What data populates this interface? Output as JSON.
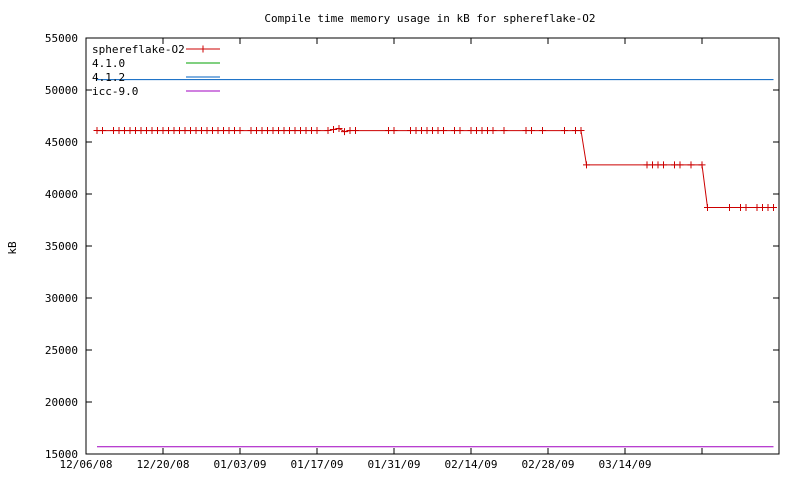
{
  "chart_data": {
    "type": "line",
    "title": "Compile time memory usage in kB for sphereflake-O2",
    "xlabel": "",
    "ylabel": "kB",
    "x_tick_labels": [
      "12/06/08",
      "12/20/08",
      "01/03/09",
      "01/17/09",
      "01/31/09",
      "02/14/09",
      "02/28/09",
      "03/14/09"
    ],
    "x_range": [
      "2008-12-06",
      "2009-04-11"
    ],
    "ylim": [
      15000,
      55000
    ],
    "y_ticks": [
      15000,
      20000,
      25000,
      30000,
      35000,
      40000,
      45000,
      50000,
      55000
    ],
    "grid": false,
    "legend_position": "top-left",
    "series": [
      {
        "name": "sphereflake-O2",
        "color": "#cc0000",
        "marker": "plus",
        "points": [
          [
            "2008-12-08",
            46100
          ],
          [
            "2008-12-09",
            46100
          ],
          [
            "2008-12-11",
            46100
          ],
          [
            "2008-12-12",
            46100
          ],
          [
            "2008-12-13",
            46100
          ],
          [
            "2008-12-14",
            46100
          ],
          [
            "2008-12-15",
            46100
          ],
          [
            "2008-12-16",
            46100
          ],
          [
            "2008-12-17",
            46100
          ],
          [
            "2008-12-18",
            46100
          ],
          [
            "2008-12-19",
            46100
          ],
          [
            "2008-12-20",
            46100
          ],
          [
            "2008-12-21",
            46100
          ],
          [
            "2008-12-22",
            46100
          ],
          [
            "2008-12-23",
            46100
          ],
          [
            "2008-12-24",
            46100
          ],
          [
            "2008-12-25",
            46100
          ],
          [
            "2008-12-26",
            46100
          ],
          [
            "2008-12-27",
            46100
          ],
          [
            "2008-12-28",
            46100
          ],
          [
            "2008-12-29",
            46100
          ],
          [
            "2008-12-30",
            46100
          ],
          [
            "2008-12-31",
            46100
          ],
          [
            "2009-01-01",
            46100
          ],
          [
            "2009-01-02",
            46100
          ],
          [
            "2009-01-03",
            46100
          ],
          [
            "2009-01-05",
            46100
          ],
          [
            "2009-01-06",
            46100
          ],
          [
            "2009-01-07",
            46100
          ],
          [
            "2009-01-08",
            46100
          ],
          [
            "2009-01-09",
            46100
          ],
          [
            "2009-01-10",
            46100
          ],
          [
            "2009-01-11",
            46100
          ],
          [
            "2009-01-12",
            46100
          ],
          [
            "2009-01-13",
            46100
          ],
          [
            "2009-01-14",
            46100
          ],
          [
            "2009-01-15",
            46100
          ],
          [
            "2009-01-16",
            46100
          ],
          [
            "2009-01-17",
            46100
          ],
          [
            "2009-01-19",
            46100
          ],
          [
            "2009-01-20",
            46200
          ],
          [
            "2009-01-21",
            46300
          ],
          [
            "2009-01-22",
            46000
          ],
          [
            "2009-01-23",
            46100
          ],
          [
            "2009-01-24",
            46100
          ],
          [
            "2009-01-30",
            46100
          ],
          [
            "2009-01-31",
            46100
          ],
          [
            "2009-02-03",
            46100
          ],
          [
            "2009-02-04",
            46100
          ],
          [
            "2009-02-05",
            46100
          ],
          [
            "2009-02-06",
            46100
          ],
          [
            "2009-02-07",
            46100
          ],
          [
            "2009-02-08",
            46100
          ],
          [
            "2009-02-09",
            46100
          ],
          [
            "2009-02-11",
            46100
          ],
          [
            "2009-02-12",
            46100
          ],
          [
            "2009-02-14",
            46100
          ],
          [
            "2009-02-15",
            46100
          ],
          [
            "2009-02-16",
            46100
          ],
          [
            "2009-02-17",
            46100
          ],
          [
            "2009-02-18",
            46100
          ],
          [
            "2009-02-20",
            46100
          ],
          [
            "2009-02-24",
            46100
          ],
          [
            "2009-02-25",
            46100
          ],
          [
            "2009-02-27",
            46100
          ],
          [
            "2009-03-03",
            46100
          ],
          [
            "2009-03-05",
            46100
          ],
          [
            "2009-03-06",
            46100
          ],
          [
            "2009-03-07",
            42800
          ],
          [
            "2009-03-18",
            42800
          ],
          [
            "2009-03-19",
            42800
          ],
          [
            "2009-03-20",
            42800
          ],
          [
            "2009-03-21",
            42800
          ],
          [
            "2009-03-23",
            42800
          ],
          [
            "2009-03-24",
            42800
          ],
          [
            "2009-03-26",
            42800
          ],
          [
            "2009-03-28",
            42800
          ],
          [
            "2009-03-29",
            38700
          ],
          [
            "2009-04-02",
            38700
          ],
          [
            "2009-04-04",
            38700
          ],
          [
            "2009-04-05",
            38700
          ],
          [
            "2009-04-07",
            38700
          ],
          [
            "2009-04-08",
            38700
          ],
          [
            "2009-04-09",
            38700
          ],
          [
            "2009-04-10",
            38700
          ]
        ]
      },
      {
        "name": "4.1.0",
        "color": "#00a000",
        "marker": "none",
        "points": []
      },
      {
        "name": "4.1.2",
        "color": "#0060c0",
        "marker": "none",
        "points": [
          [
            "2008-12-08",
            51000
          ],
          [
            "2009-04-10",
            51000
          ]
        ]
      },
      {
        "name": "icc-9.0",
        "color": "#a000c0",
        "marker": "none",
        "points": [
          [
            "2008-12-08",
            15700
          ],
          [
            "2009-04-10",
            15700
          ]
        ]
      }
    ]
  }
}
